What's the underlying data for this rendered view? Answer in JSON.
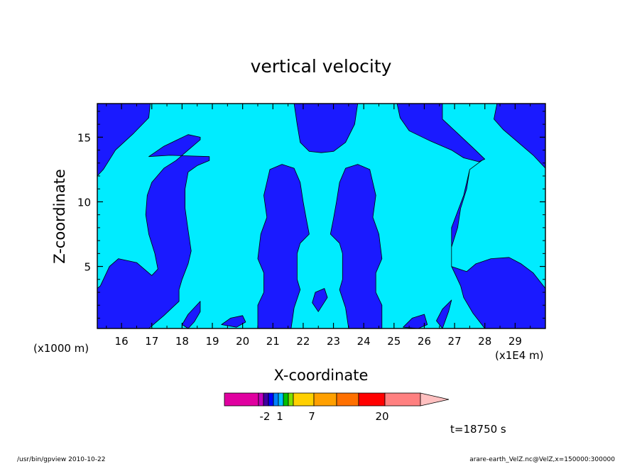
{
  "chart_data": {
    "type": "contour",
    "title": "vertical velocity",
    "xlabel": "X-coordinate",
    "ylabel": "Z-coordinate",
    "x_unit_left": "(x1000 m)",
    "x_unit_right": "(x1E4 m)",
    "xlim": [
      15.2,
      30.0
    ],
    "ylim": [
      0.2,
      17.6
    ],
    "x_ticks": [
      16,
      17,
      18,
      19,
      20,
      21,
      22,
      23,
      24,
      25,
      26,
      27,
      28,
      29
    ],
    "y_ticks": [
      5,
      10,
      15
    ],
    "colors": {
      "negative_region": "#1a1aff",
      "positive_region": "#00ecff"
    },
    "regions": [
      {
        "level": "negative",
        "polygon": [
          [
            15.2,
            17.6
          ],
          [
            16.95,
            17.6
          ],
          [
            16.9,
            16.5
          ],
          [
            16.4,
            15.3
          ],
          [
            15.8,
            14.0
          ],
          [
            15.4,
            12.5
          ],
          [
            15.2,
            12.0
          ]
        ]
      },
      {
        "level": "negative",
        "polygon": [
          [
            16.9,
            13.5
          ],
          [
            17.4,
            14.3
          ],
          [
            18.2,
            15.2
          ],
          [
            18.6,
            15.0
          ],
          [
            18.6,
            14.8
          ],
          [
            18.2,
            14.0
          ],
          [
            17.8,
            13.2
          ],
          [
            17.4,
            12.6
          ],
          [
            17.0,
            11.5
          ],
          [
            16.85,
            10.5
          ],
          [
            16.8,
            9.0
          ],
          [
            16.9,
            7.5
          ],
          [
            17.1,
            6.0
          ],
          [
            17.2,
            4.8
          ],
          [
            17.0,
            4.3
          ],
          [
            16.5,
            5.3
          ],
          [
            15.9,
            5.6
          ],
          [
            15.6,
            5.0
          ],
          [
            15.3,
            3.5
          ],
          [
            15.2,
            3.3
          ],
          [
            15.2,
            0.2
          ],
          [
            16.9,
            0.2
          ],
          [
            17.4,
            1.2
          ],
          [
            17.9,
            2.3
          ],
          [
            17.9,
            3.2
          ],
          [
            18.0,
            4.0
          ],
          [
            18.2,
            5.2
          ],
          [
            18.3,
            6.2
          ],
          [
            18.2,
            7.8
          ],
          [
            18.1,
            9.5
          ],
          [
            18.1,
            11.0
          ],
          [
            18.2,
            12.3
          ],
          [
            18.5,
            12.8
          ],
          [
            18.9,
            13.2
          ],
          [
            18.9,
            13.5
          ],
          [
            17.6,
            13.6
          ]
        ]
      },
      {
        "level": "negative",
        "polygon": [
          [
            20.5,
            0.2
          ],
          [
            20.5,
            2.0
          ],
          [
            20.7,
            3.0
          ],
          [
            20.7,
            4.5
          ],
          [
            20.5,
            5.6
          ],
          [
            20.6,
            7.5
          ],
          [
            20.8,
            8.8
          ],
          [
            20.7,
            10.5
          ],
          [
            20.9,
            12.5
          ],
          [
            21.3,
            12.9
          ],
          [
            21.7,
            12.6
          ],
          [
            21.9,
            11.5
          ],
          [
            22.0,
            10.0
          ],
          [
            22.1,
            8.7
          ],
          [
            22.2,
            7.5
          ],
          [
            21.9,
            6.8
          ],
          [
            21.8,
            6.0
          ],
          [
            21.8,
            4.0
          ],
          [
            21.9,
            3.2
          ],
          [
            21.7,
            1.8
          ],
          [
            21.6,
            0.2
          ]
        ]
      },
      {
        "level": "negative",
        "polygon": [
          [
            24.6,
            0.2
          ],
          [
            24.6,
            2.0
          ],
          [
            24.4,
            3.0
          ],
          [
            24.4,
            4.5
          ],
          [
            24.6,
            5.6
          ],
          [
            24.5,
            7.5
          ],
          [
            24.3,
            8.8
          ],
          [
            24.4,
            10.5
          ],
          [
            24.2,
            12.5
          ],
          [
            23.8,
            12.9
          ],
          [
            23.4,
            12.6
          ],
          [
            23.2,
            11.5
          ],
          [
            23.1,
            10.0
          ],
          [
            23.0,
            8.7
          ],
          [
            22.9,
            7.5
          ],
          [
            23.2,
            6.8
          ],
          [
            23.3,
            6.0
          ],
          [
            23.3,
            4.0
          ],
          [
            23.2,
            3.2
          ],
          [
            23.4,
            1.8
          ],
          [
            23.5,
            0.2
          ]
        ]
      },
      {
        "level": "negative",
        "polygon": [
          [
            22.0,
            17.6
          ],
          [
            23.8,
            17.6
          ],
          [
            23.7,
            16.0
          ],
          [
            23.4,
            14.6
          ],
          [
            23.0,
            13.9
          ],
          [
            22.6,
            13.8
          ],
          [
            22.2,
            13.9
          ],
          [
            21.9,
            14.6
          ],
          [
            21.8,
            16.0
          ],
          [
            21.7,
            17.6
          ]
        ]
      },
      {
        "level": "negative",
        "polygon": [
          [
            25.1,
            17.6
          ],
          [
            26.6,
            17.6
          ],
          [
            26.6,
            16.4
          ],
          [
            27.1,
            15.3
          ],
          [
            27.6,
            14.2
          ],
          [
            28.0,
            13.3
          ],
          [
            27.8,
            13.1
          ],
          [
            27.3,
            13.4
          ],
          [
            26.9,
            14.0
          ],
          [
            26.2,
            14.7
          ],
          [
            25.5,
            15.5
          ],
          [
            25.2,
            16.5
          ]
        ]
      },
      {
        "level": "negative",
        "polygon": [
          [
            30.0,
            17.6
          ],
          [
            28.4,
            17.6
          ],
          [
            28.3,
            16.4
          ],
          [
            28.6,
            15.6
          ],
          [
            29.1,
            14.6
          ],
          [
            29.6,
            13.6
          ],
          [
            30.0,
            12.6
          ]
        ]
      },
      {
        "level": "negative",
        "polygon": [
          [
            27.9,
            13.2
          ],
          [
            27.5,
            12.5
          ],
          [
            27.4,
            11.0
          ],
          [
            27.2,
            9.5
          ],
          [
            27.1,
            8.0
          ],
          [
            26.9,
            6.5
          ],
          [
            26.9,
            5.0
          ],
          [
            27.4,
            4.6
          ],
          [
            27.7,
            5.2
          ],
          [
            28.2,
            5.6
          ],
          [
            28.8,
            5.7
          ],
          [
            29.2,
            5.2
          ],
          [
            29.6,
            4.5
          ],
          [
            30.0,
            3.3
          ],
          [
            30.0,
            0.2
          ],
          [
            28.0,
            0.2
          ],
          [
            27.6,
            1.4
          ],
          [
            27.3,
            2.6
          ],
          [
            27.2,
            3.5
          ],
          [
            27.0,
            4.5
          ],
          [
            26.9,
            5.0
          ],
          [
            26.9,
            8.0
          ],
          [
            27.3,
            10.5
          ],
          [
            27.5,
            12.5
          ]
        ]
      },
      {
        "level": "negative",
        "polygon": [
          [
            18.0,
            0.5
          ],
          [
            18.2,
            1.3
          ],
          [
            18.4,
            1.8
          ],
          [
            18.6,
            2.3
          ],
          [
            18.6,
            1.5
          ],
          [
            18.4,
            0.7
          ],
          [
            18.2,
            0.2
          ]
        ]
      },
      {
        "level": "negative",
        "polygon": [
          [
            19.3,
            0.5
          ],
          [
            19.6,
            1.0
          ],
          [
            20.0,
            1.2
          ],
          [
            20.1,
            0.7
          ],
          [
            19.8,
            0.3
          ]
        ]
      },
      {
        "level": "negative",
        "polygon": [
          [
            22.5,
            1.5
          ],
          [
            22.8,
            2.6
          ],
          [
            22.7,
            3.3
          ],
          [
            22.4,
            3.0
          ],
          [
            22.3,
            2.2
          ]
        ]
      },
      {
        "level": "negative",
        "polygon": [
          [
            25.3,
            0.3
          ],
          [
            25.6,
            1.0
          ],
          [
            26.0,
            1.3
          ],
          [
            26.1,
            0.5
          ],
          [
            25.8,
            0.2
          ]
        ]
      },
      {
        "level": "negative",
        "polygon": [
          [
            26.6,
            0.2
          ],
          [
            26.8,
            1.5
          ],
          [
            26.9,
            2.4
          ],
          [
            26.6,
            1.7
          ],
          [
            26.4,
            0.8
          ]
        ]
      }
    ],
    "colorbar": {
      "tick_labels": [
        "-2",
        "1",
        "7",
        "20"
      ],
      "colors": [
        "#e000a0",
        "#c000c0",
        "#4000a0",
        "#0000ff",
        "#0080ff",
        "#00c0ff",
        "#00c000",
        "#80e000",
        "#ffd000",
        "#ffa000",
        "#ff7000",
        "#ff0000",
        "#ff8080",
        "#ffc0c0"
      ]
    },
    "annotation": "t=18750 s"
  },
  "footer": {
    "left": "/usr/bin/gpview   2010-10-22",
    "right": "arare-earth_VelZ.nc@VelZ,x=150000:300000"
  }
}
